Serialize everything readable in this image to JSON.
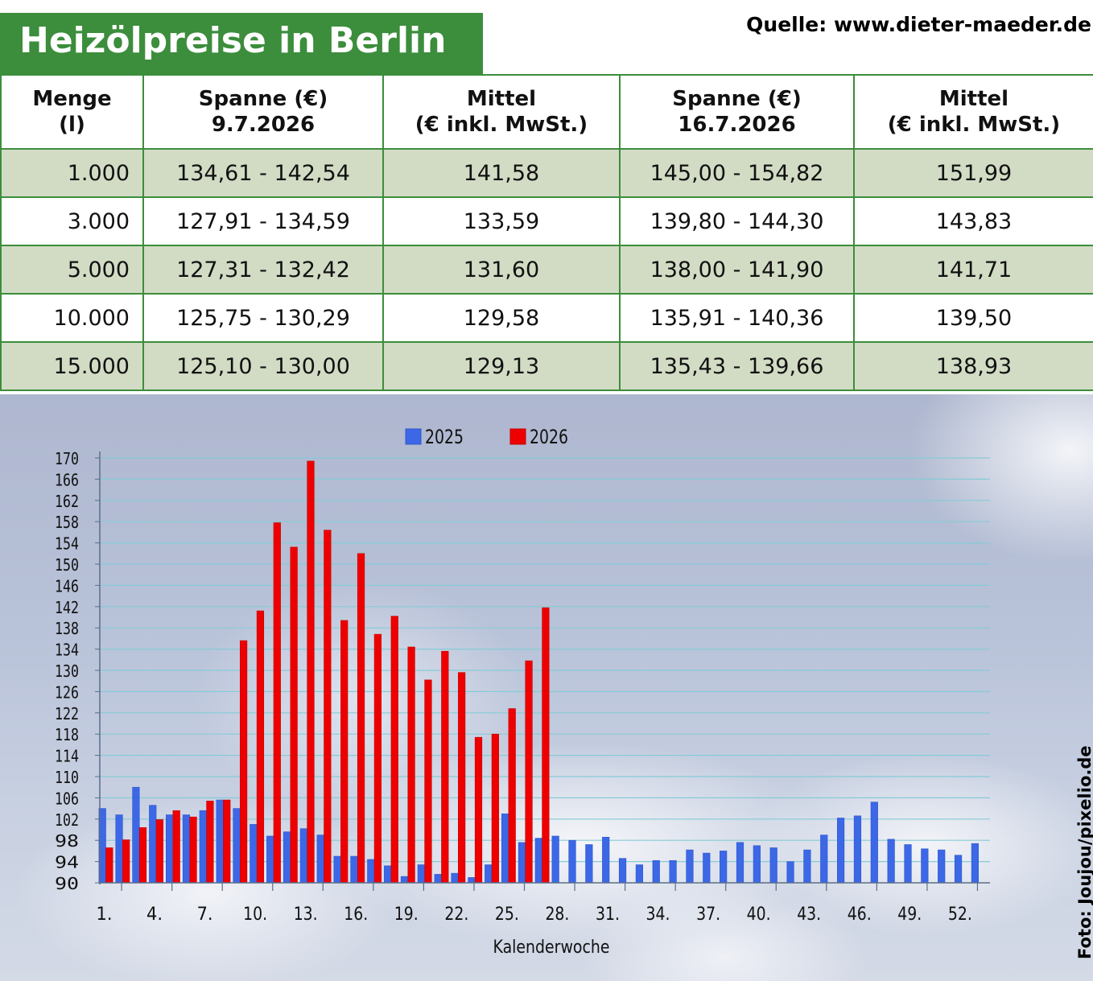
{
  "title": "Heizölpreise in Berlin",
  "source": "Quelle: www.dieter-maeder.de",
  "photo_credit": "Foto: Joujou/pixelio.de",
  "table": {
    "headers": [
      [
        "Menge",
        "(l)"
      ],
      [
        "Spanne (€)",
        "9.7.2026"
      ],
      [
        "Mittel",
        "(€ inkl. MwSt.)"
      ],
      [
        "Spanne (€)",
        "16.7.2026"
      ],
      [
        "Mittel",
        "(€ inkl. MwSt.)"
      ]
    ],
    "rows": [
      [
        "1.000",
        "134,61 - 142,54",
        "141,58",
        "145,00 - 154,82",
        "151,99"
      ],
      [
        "3.000",
        "127,91 - 134,59",
        "133,59",
        "139,80 - 144,30",
        "143,83"
      ],
      [
        "5.000",
        "127,31 - 132,42",
        "131,60",
        "138,00 - 141,90",
        "141,71"
      ],
      [
        "10.000",
        "125,75 - 130,29",
        "129,58",
        "135,91 - 140,36",
        "139,50"
      ],
      [
        "15.000",
        "125,10 - 130,00",
        "129,13",
        "135,43 - 139,66",
        "138,93"
      ]
    ],
    "shade_color": "#d2dcc4",
    "border_color": "#3c8d3c"
  },
  "chart_data": {
    "type": "bar",
    "xlabel": "Kalenderwoche",
    "ylabel": "",
    "ylim": [
      90,
      170
    ],
    "yticks": [
      90,
      94,
      98,
      102,
      106,
      110,
      114,
      118,
      122,
      126,
      130,
      134,
      138,
      142,
      146,
      150,
      154,
      158,
      162,
      166,
      170
    ],
    "xtick_labels": [
      "1.",
      "4.",
      "7.",
      "10.",
      "13.",
      "16.",
      "19.",
      "22.",
      "25.",
      "28.",
      "31.",
      "34.",
      "37.",
      "40.",
      "43.",
      "46.",
      "49.",
      "52."
    ],
    "grid": true,
    "legend_position": "top-center",
    "weeks": [
      1,
      2,
      3,
      4,
      5,
      6,
      7,
      8,
      9,
      10,
      11,
      12,
      13,
      14,
      15,
      16,
      17,
      18,
      19,
      20,
      21,
      22,
      23,
      24,
      25,
      26,
      27,
      28,
      29,
      30,
      31,
      32,
      33,
      34,
      35,
      36,
      37,
      38,
      39,
      40,
      41,
      42,
      43,
      44,
      45,
      46,
      47,
      48,
      49,
      50,
      51,
      52,
      53
    ],
    "series": [
      {
        "name": "2025",
        "color": "#3c67e6",
        "values": [
          104,
          102.8,
          108,
          104.6,
          102.8,
          102.8,
          103.6,
          105.6,
          104,
          101,
          98.8,
          99.6,
          100.2,
          99,
          95,
          95,
          94.4,
          93.2,
          91.2,
          93.4,
          91.6,
          91.8,
          91,
          93.4,
          103,
          97.6,
          98.4,
          98.8,
          98,
          97.2,
          98.6,
          94.6,
          93.4,
          94.2,
          94.2,
          96.2,
          95.6,
          96,
          97.6,
          97,
          96.6,
          94,
          96.2,
          99,
          102.2,
          102.6,
          105.2,
          98.2,
          97.2,
          96.4,
          96.2,
          95.2,
          97.4
        ]
      },
      {
        "name": "2026",
        "color": "#ee0000",
        "values": [
          96.6,
          98.1,
          100.4,
          101.9,
          103.6,
          102.4,
          105.4,
          105.6,
          135.6,
          141.2,
          157.8,
          153.2,
          169.4,
          156.4,
          139.4,
          152,
          136.8,
          140.2,
          134.4,
          128.2,
          133.6,
          129.6,
          117.4,
          118,
          122.8,
          131.8,
          141.8
        ]
      }
    ]
  }
}
